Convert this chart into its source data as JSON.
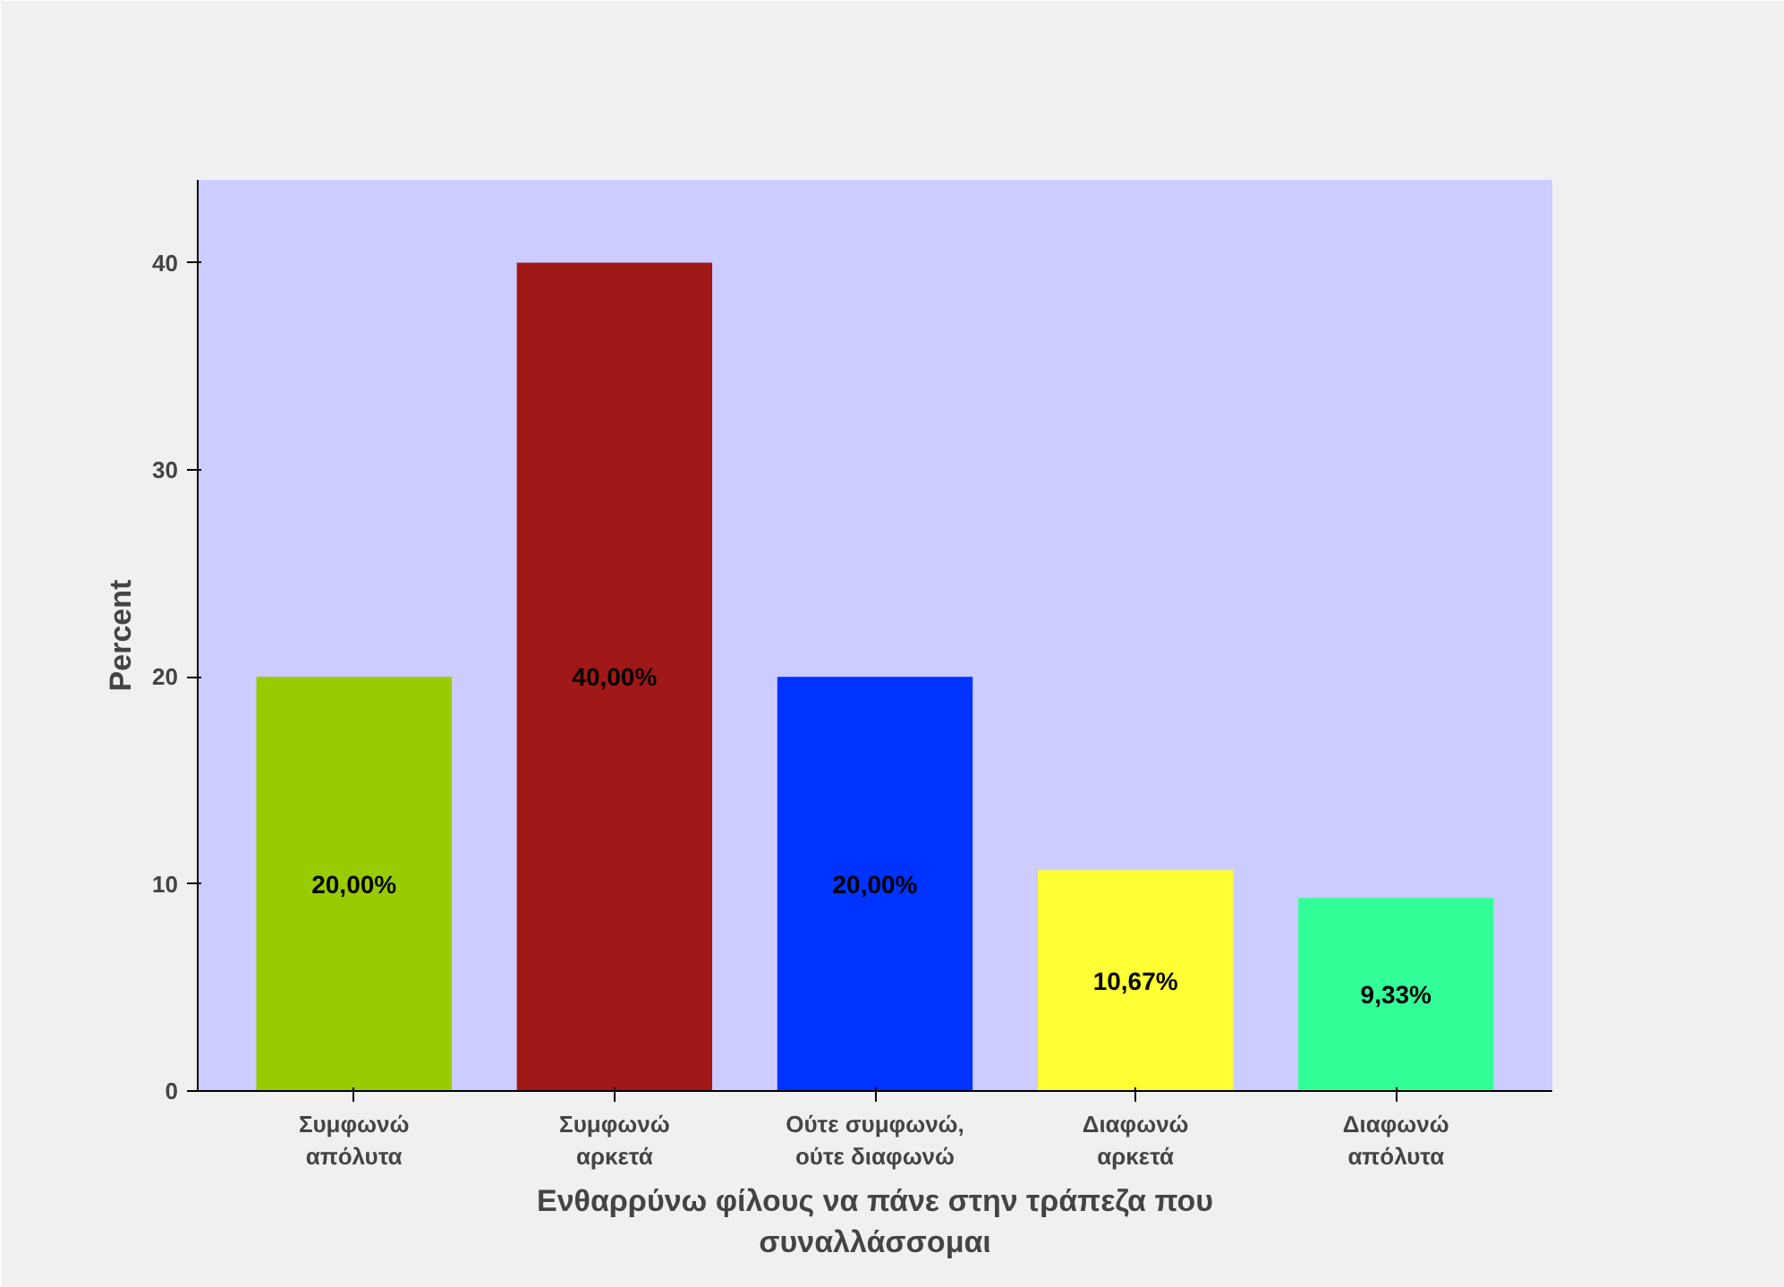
{
  "chart_data": {
    "type": "bar",
    "xlabel": "Ενθαρρύνω φίλους να πάνε στην τράπεζα που\nσυναλλάσσομαι",
    "ylabel": "Percent",
    "categories": [
      "Συμφωνώ\nαπόλυτα",
      "Συμφωνώ\nαρκετά",
      "Ούτε συμφωνώ,\nούτε διαφωνώ",
      "Διαφωνώ\nαρκετά",
      "Διαφωνώ\nαπόλυτα"
    ],
    "values": [
      20.0,
      40.0,
      20.0,
      10.67,
      9.33
    ],
    "colors": [
      "#99cc00",
      "#a01818",
      "#0033ff",
      "#ffff33",
      "#33ff99"
    ],
    "value_labels": [
      "20,00%",
      "40,00%",
      "20,00%",
      "10,67%",
      "9,33%"
    ],
    "ylim": [
      0,
      44
    ],
    "yticks": [
      0,
      10,
      20,
      30,
      40
    ],
    "grid": false
  }
}
